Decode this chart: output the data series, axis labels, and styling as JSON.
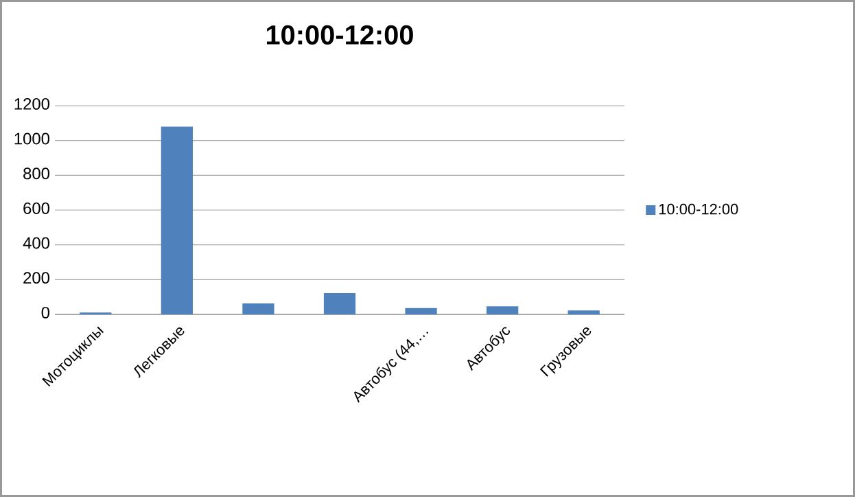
{
  "chart_data": {
    "type": "bar",
    "title": "10:00-12:00",
    "categories": [
      "Мотоциклы",
      "Легковые",
      null,
      null,
      "Автобус (44,…",
      "Автобус",
      "Грузовые"
    ],
    "series": [
      {
        "name": "10:00-12:00",
        "color": "#4f81bd",
        "values": [
          11,
          1080,
          63,
          122,
          37,
          46,
          23
        ]
      }
    ],
    "ylim": [
      0,
      1200
    ],
    "yticks": [
      0,
      200,
      400,
      600,
      800,
      1000,
      1200
    ],
    "grid": "y",
    "legend": "right"
  }
}
